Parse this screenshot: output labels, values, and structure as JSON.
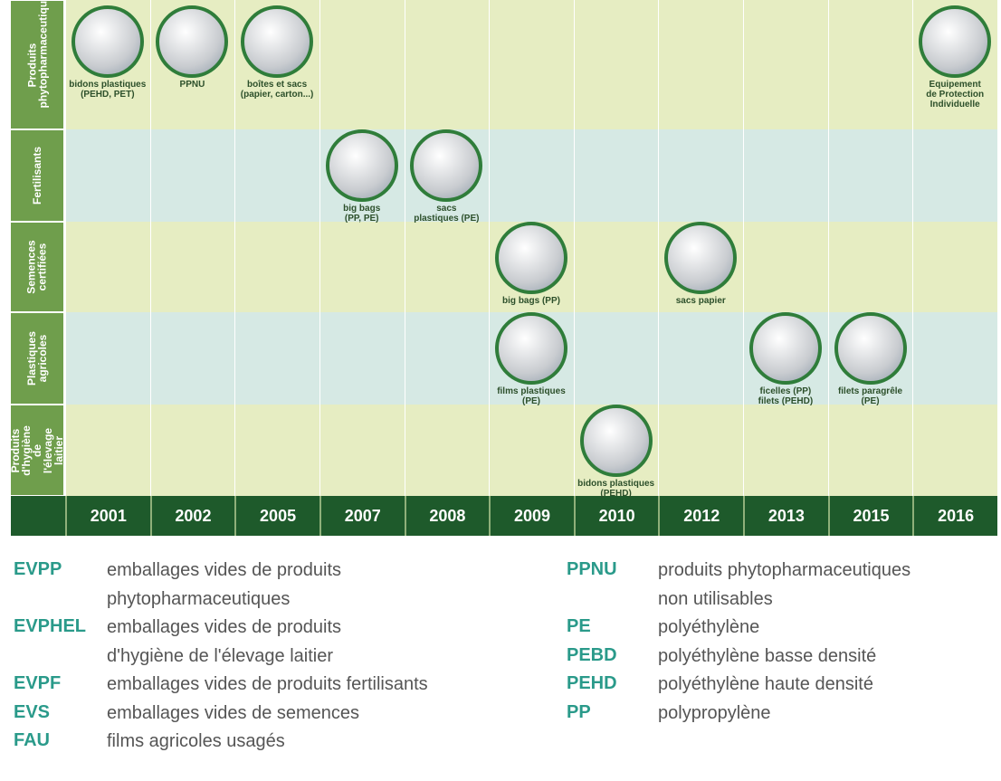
{
  "rows": [
    "Produits phytopharmaceutiques",
    "Fertilisants",
    "Semences certifiées",
    "Plastiques agricoles",
    "Produits d'hygiène de l'élevage laitier"
  ],
  "years": [
    "2001",
    "2002",
    "2005",
    "2007",
    "2008",
    "2009",
    "2010",
    "2012",
    "2013",
    "2015",
    "2016"
  ],
  "items": [
    {
      "year": "2001",
      "row": "Produits phytopharmaceutiques",
      "caption": [
        "bidons plastiques",
        "(PEHD, PET)"
      ]
    },
    {
      "year": "2002",
      "row": "Produits phytopharmaceutiques",
      "caption": [
        "PPNU"
      ]
    },
    {
      "year": "2005",
      "row": "Produits phytopharmaceutiques",
      "caption": [
        "boîtes et sacs",
        "(papier, carton...)"
      ]
    },
    {
      "year": "2007",
      "row": "Fertilisants",
      "caption": [
        "big bags",
        "(PP, PE)"
      ]
    },
    {
      "year": "2008",
      "row": "Fertilisants",
      "caption": [
        "sacs",
        "plastiques (PE)"
      ]
    },
    {
      "year": "2009",
      "row": "Semences certifiées",
      "caption": [
        "big bags (PP)"
      ]
    },
    {
      "year": "2009",
      "row": "Plastiques agricoles",
      "caption": [
        "films plastiques",
        "(PE)"
      ]
    },
    {
      "year": "2010",
      "row": "Produits d'hygiène de l'élevage laitier",
      "caption": [
        "bidons plastiques",
        "(PEHD)"
      ]
    },
    {
      "year": "2012",
      "row": "Semences certifiées",
      "caption": [
        "sacs papier"
      ]
    },
    {
      "year": "2013",
      "row": "Plastiques agricoles",
      "caption": [
        "ficelles (PP)",
        "filets (PEHD)"
      ]
    },
    {
      "year": "2015",
      "row": "Plastiques agricoles",
      "caption": [
        "filets paragrêle",
        "(PE)"
      ]
    },
    {
      "year": "2016",
      "row": "Produits phytopharmaceutiques",
      "caption": [
        "Equipement",
        "de Protection",
        "Individuelle"
      ]
    }
  ],
  "legend_left": [
    {
      "abbr": "EVPP",
      "desc": [
        "emballages vides de produits",
        "phytopharmaceutiques"
      ]
    },
    {
      "abbr": "EVPHEL",
      "desc": [
        "emballages vides de produits",
        "d'hygiène de l'élevage laitier"
      ]
    },
    {
      "abbr": "EVPF",
      "desc": [
        "emballages vides de produits fertilisants"
      ]
    },
    {
      "abbr": "EVS",
      "desc": [
        "emballages vides de semences"
      ]
    },
    {
      "abbr": "FAU",
      "desc": [
        "films agricoles usagés"
      ]
    }
  ],
  "legend_right": [
    {
      "abbr": "PPNU",
      "desc": [
        "produits phytopharmaceutiques",
        "non utilisables"
      ]
    },
    {
      "abbr": "PE",
      "desc": [
        "polyéthylène"
      ]
    },
    {
      "abbr": "PEBD",
      "desc": [
        "polyéthylène basse densité"
      ]
    },
    {
      "abbr": "PEHD",
      "desc": [
        "polyéthylène haute densité"
      ]
    },
    {
      "abbr": "PP",
      "desc": [
        "polypropylène"
      ]
    }
  ]
}
